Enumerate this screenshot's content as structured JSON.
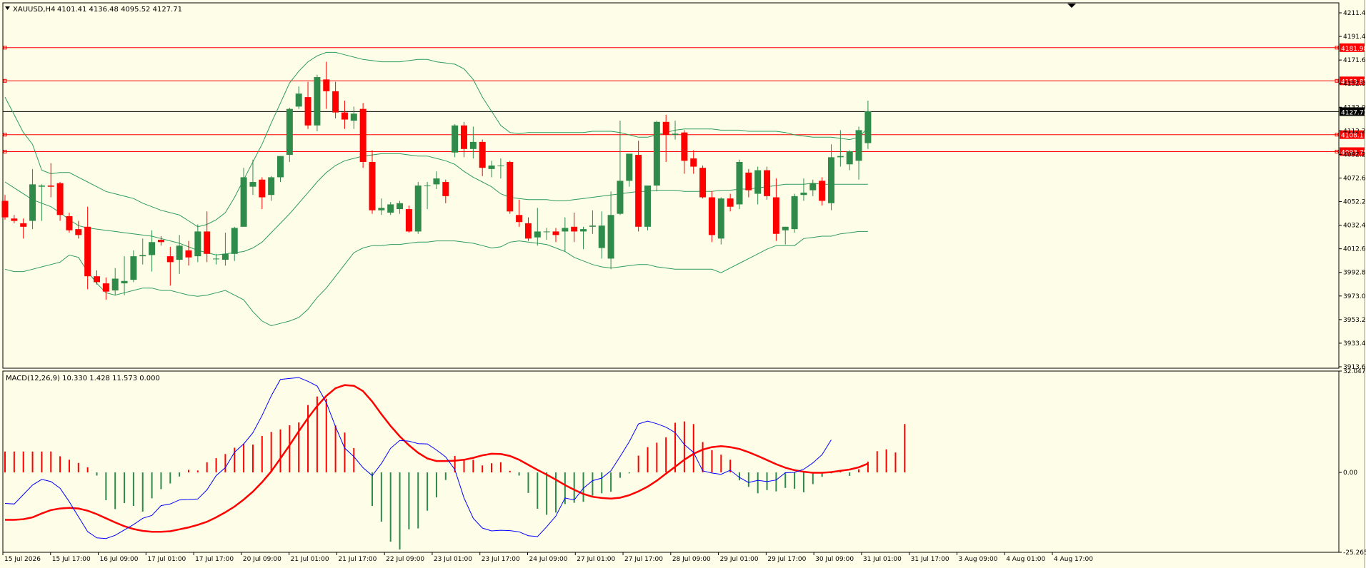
{
  "chart_data": {
    "type": "candlestick",
    "symbol": "XAUUSD,H4",
    "ohlc_label": "4101.41 4136.48 4095.52 4127.71",
    "colors": {
      "background": "#fefee8",
      "bull": "#2e8b4a",
      "bear": "#ff0000",
      "bands": "#2e9b5a",
      "macd": "#0000ff",
      "signal": "#ff0000",
      "level": "#ff0000",
      "price_line": "#000000"
    },
    "price_axis": {
      "range": [
        3910,
        4220
      ],
      "ticks": [
        "4211.40",
        "4191.40",
        "4171.60",
        "4152.00",
        "4132.00",
        "4112.20",
        "4092.20",
        "4072.60",
        "4052.25",
        "4032.45",
        "4012.65",
        "3992.85",
        "3973.05",
        "3953.25",
        "3933.45",
        "3913.65"
      ]
    },
    "levels": [
      {
        "value": 4181.98,
        "label": "4181.98"
      },
      {
        "value": 4153.82,
        "label": "4153.82"
      },
      {
        "value": 4108.17,
        "label": "4108.17"
      },
      {
        "value": 4093.78,
        "label": "4093.78"
      }
    ],
    "current_price": {
      "value": 4127.71,
      "label": "4127.71"
    },
    "time_axis": [
      "15 Jul 2026",
      "15 Jul 17:00",
      "16 Jul 09:00",
      "17 Jul 01:00",
      "17 Jul 17:00",
      "20 Jul 09:00",
      "21 Jul 01:00",
      "21 Jul 17:00",
      "22 Jul 09:00",
      "23 Jul 01:00",
      "23 Jul 17:00",
      "24 Jul 09:00",
      "27 Jul 01:00",
      "27 Jul 17:00",
      "28 Jul 09:00",
      "29 Jul 01:00",
      "29 Jul 17:00",
      "30 Jul 09:00",
      "31 Jul 01:00",
      "31 Jul 17:00",
      "3 Aug 09:00",
      "4 Aug 01:00",
      "4 Aug 17:00"
    ],
    "candles": [
      [
        4052,
        4057,
        4036,
        4038
      ],
      [
        4037,
        4040,
        4033,
        4035
      ],
      [
        4033,
        4037,
        4020,
        4030
      ],
      [
        4035,
        4079,
        4028,
        4066
      ],
      [
        4064,
        4066,
        4035,
        4065
      ],
      [
        4065,
        4084,
        4055,
        4064
      ],
      [
        4067,
        4068,
        4035,
        4040
      ],
      [
        4039,
        4042,
        4025,
        4027
      ],
      [
        4028,
        4035,
        4020,
        4023
      ],
      [
        4030,
        4047,
        3977,
        3988
      ],
      [
        3988,
        3993,
        3981,
        3983
      ],
      [
        3982,
        3987,
        3968,
        3975
      ],
      [
        3976,
        3995,
        3972,
        3986
      ],
      [
        3982,
        4005,
        3972,
        3984
      ],
      [
        3985,
        4010,
        3983,
        4005
      ],
      [
        4005,
        4020,
        3998,
        4006
      ],
      [
        4006,
        4027,
        3992,
        4017
      ],
      [
        4019,
        4022,
        4014,
        4017
      ],
      [
        4005,
        4013,
        3980,
        4000
      ],
      [
        4002,
        4023,
        3990,
        4014
      ],
      [
        4010,
        4018,
        3997,
        4004
      ],
      [
        4005,
        4032,
        4000,
        4026
      ],
      [
        4026,
        4043,
        4000,
        4007
      ],
      [
        4003,
        4007,
        3998,
        4003
      ],
      [
        4002,
        4025,
        3997,
        4007
      ],
      [
        4007,
        4030,
        4001,
        4029
      ],
      [
        4030,
        4080,
        4030,
        4072
      ],
      [
        4064,
        4087,
        4057,
        4068
      ],
      [
        4070,
        4072,
        4045,
        4055
      ],
      [
        4057,
        4073,
        4052,
        4072
      ],
      [
        4072,
        4090,
        4068,
        4090
      ],
      [
        4091,
        4131,
        4085,
        4130
      ],
      [
        4132,
        4149,
        4130,
        4143
      ],
      [
        4140,
        4153,
        4113,
        4116
      ],
      [
        4116,
        4159,
        4111,
        4157
      ],
      [
        4155,
        4170,
        4130,
        4145
      ],
      [
        4145,
        4153,
        4122,
        4127
      ],
      [
        4127,
        4137,
        4113,
        4121
      ],
      [
        4120,
        4132,
        4113,
        4126
      ],
      [
        4130,
        4135,
        4080,
        4085
      ],
      [
        4085,
        4095,
        4041,
        4044
      ],
      [
        4044,
        4054,
        4040,
        4046
      ],
      [
        4042,
        4051,
        4040,
        4049
      ],
      [
        4045,
        4052,
        4041,
        4050
      ],
      [
        4045,
        4048,
        4025,
        4026
      ],
      [
        4026,
        4068,
        4024,
        4065
      ],
      [
        4065,
        4068,
        4045,
        4065
      ],
      [
        4066,
        4077,
        4062,
        4071
      ],
      [
        4068,
        4070,
        4050,
        4056
      ],
      [
        4093,
        4117,
        4089,
        4116
      ],
      [
        4116,
        4119,
        4089,
        4096
      ],
      [
        4096,
        4115,
        4088,
        4102
      ],
      [
        4102,
        4104,
        4073,
        4080
      ],
      [
        4079,
        4086,
        4072,
        4082
      ],
      [
        4082,
        4088,
        4071,
        4082
      ],
      [
        4085,
        4086,
        4041,
        4043
      ],
      [
        4040,
        4053,
        4030,
        4034
      ],
      [
        4033,
        4038,
        4018,
        4020
      ],
      [
        4021,
        4046,
        4014,
        4026
      ],
      [
        4026,
        4029,
        4019,
        4026
      ],
      [
        4026,
        4029,
        4017,
        4023
      ],
      [
        4026,
        4038,
        4009,
        4029
      ],
      [
        4030,
        4042,
        4017,
        4026
      ],
      [
        4026,
        4030,
        4011,
        4028
      ],
      [
        4030,
        4044,
        4024,
        4031
      ],
      [
        4012,
        4043,
        4003,
        4031
      ],
      [
        4003,
        4060,
        3994,
        4040
      ],
      [
        4041,
        4120,
        4040,
        4069
      ],
      [
        4069,
        4091,
        4064,
        4092
      ],
      [
        4091,
        4103,
        4026,
        4030
      ],
      [
        4030,
        4064,
        4027,
        4065
      ],
      [
        4065,
        4120,
        4060,
        4119
      ],
      [
        4119,
        4125,
        4085,
        4108
      ],
      [
        4108,
        4120,
        4104,
        4109
      ],
      [
        4110,
        4112,
        4075,
        4086
      ],
      [
        4088,
        4095,
        4075,
        4081
      ],
      [
        4080,
        4082,
        4054,
        4055
      ],
      [
        4055,
        4060,
        4017,
        4023
      ],
      [
        4020,
        4055,
        4015,
        4054
      ],
      [
        4054,
        4058,
        4043,
        4047
      ],
      [
        4049,
        4087,
        4045,
        4085
      ],
      [
        4076,
        4079,
        4055,
        4061
      ],
      [
        4058,
        4081,
        4049,
        4078
      ],
      [
        4078,
        4081,
        4053,
        4056
      ],
      [
        4055,
        4071,
        4018,
        4024
      ],
      [
        4027,
        4030,
        4015,
        4030
      ],
      [
        4028,
        4058,
        4025,
        4056
      ],
      [
        4057,
        4071,
        4052,
        4059
      ],
      [
        4061,
        4070,
        4056,
        4067
      ],
      [
        4069,
        4072,
        4048,
        4052
      ],
      [
        4050,
        4100,
        4044,
        4089
      ],
      [
        4089,
        4112,
        4081,
        4090
      ],
      [
        4083,
        4095,
        4078,
        4094
      ],
      [
        4086,
        4115,
        4070,
        4112
      ],
      [
        4101,
        4137,
        4096,
        4128
      ]
    ],
    "bands": {
      "upper": [
        4140,
        4125,
        4110,
        4100,
        4078,
        4075,
        4076,
        4076,
        4072,
        4068,
        4064,
        4060,
        4058,
        4056,
        4054,
        4050,
        4047,
        4044,
        4042,
        4040,
        4035,
        4030,
        4032,
        4036,
        4042,
        4055,
        4070,
        4085,
        4100,
        4118,
        4135,
        4152,
        4162,
        4170,
        4175,
        4178,
        4178,
        4176,
        4174,
        4172,
        4171,
        4170,
        4170,
        4170,
        4171,
        4172,
        4172,
        4170,
        4169,
        4168,
        4164,
        4155,
        4140,
        4128,
        4116,
        4110,
        4109,
        4110,
        4110,
        4110,
        4110,
        4110,
        4110,
        4110,
        4111,
        4111,
        4111,
        4110,
        4108,
        4106,
        4106,
        4108,
        4110,
        4112,
        4113,
        4113,
        4113,
        4113,
        4112,
        4112,
        4112,
        4111,
        4111,
        4111,
        4111,
        4110,
        4108,
        4107,
        4106,
        4106,
        4106,
        4105,
        4104,
        4106,
        4114
      ],
      "middle": [
        4068,
        4063,
        4058,
        4053,
        4050,
        4047,
        4042,
        4036,
        4031,
        4029,
        4028,
        4027,
        4026,
        4025,
        4024,
        4023,
        4022,
        4020,
        4018,
        4016,
        4013,
        4010,
        4008,
        4006,
        4007,
        4008,
        4009,
        4012,
        4017,
        4025,
        4033,
        4041,
        4050,
        4059,
        4068,
        4076,
        4082,
        4086,
        4088,
        4090,
        4091,
        4092,
        4092,
        4092,
        4091,
        4090,
        4090,
        4088,
        4086,
        4083,
        4077,
        4072,
        4068,
        4064,
        4058,
        4055,
        4054,
        4053,
        4053,
        4053,
        4052,
        4052,
        4053,
        4054,
        4055,
        4056,
        4057,
        4058,
        4059,
        4060,
        4060,
        4061,
        4061,
        4061,
        4060,
        4060,
        4060,
        4060,
        4061,
        4061,
        4062,
        4062,
        4063,
        4064,
        4065,
        4066,
        4066,
        4066,
        4067,
        4066,
        4066,
        4066,
        4066,
        4066,
        4066
      ],
      "lower": [
        3994,
        3992,
        3992,
        3994,
        3996,
        3998,
        4000,
        4006,
        4004,
        3992,
        3982,
        3974,
        3972,
        3974,
        3976,
        3978,
        3978,
        3976,
        3976,
        3974,
        3972,
        3971,
        3972,
        3974,
        3976,
        3972,
        3968,
        3958,
        3950,
        3946,
        3948,
        3950,
        3953,
        3960,
        3970,
        3978,
        3988,
        3998,
        4008,
        4012,
        4014,
        4014,
        4015,
        4015,
        4016,
        4017,
        4017,
        4018,
        4018,
        4018,
        4017,
        4016,
        4014,
        4012,
        4013,
        4017,
        4018,
        4017,
        4016,
        4015,
        4012,
        4009,
        4004,
        4001,
        3998,
        3996,
        3995,
        3996,
        3997,
        3998,
        3998,
        3996,
        3995,
        3994,
        3994,
        3994,
        3994,
        3994,
        3991,
        3995,
        3999,
        4003,
        4007,
        4011,
        4014,
        4014,
        4014,
        4020,
        4021,
        4022,
        4022,
        4024,
        4025,
        4026,
        4026
      ]
    },
    "macd": {
      "label": "MACD(12,26,9) 10.330 1.428 11.573 0.000",
      "range": [
        -25.265,
        32.047
      ],
      "ticks": [
        "32.047",
        "0.00",
        "-25.265"
      ],
      "histogram": [
        6.6,
        6.6,
        6.6,
        6.6,
        6.6,
        6.6,
        5.1,
        4.0,
        3.0,
        1.6,
        -1.0,
        -8.8,
        -11.6,
        -9.7,
        -10.6,
        -12.4,
        -8.2,
        -5.3,
        -3.5,
        -1.3,
        0.8,
        0.6,
        3.2,
        4.5,
        5.8,
        7.8,
        9.1,
        8.8,
        11.5,
        12.8,
        13.6,
        14.9,
        15.8,
        21.3,
        24.0,
        23.3,
        14.8,
        12.6,
        7.7,
        0.0,
        -10.6,
        -15.6,
        -21.9,
        -24.4,
        -18.0,
        -17.7,
        -12.1,
        -7.9,
        -2.4,
        5.2,
        4.1,
        4.0,
        2.2,
        2.9,
        3.2,
        0.5,
        -1.0,
        -6.5,
        -11.5,
        -13.4,
        -12.7,
        -10.0,
        -9.6,
        -9.3,
        -7.4,
        -6.6,
        -6.1,
        -1.7,
        -0.3,
        5.3,
        8.0,
        9.4,
        11.1,
        15.7,
        16.1,
        15.3,
        9.6,
        7.0,
        5.6,
        4.0,
        -2.5,
        -4.6,
        -6.6,
        -5.6,
        -6.0,
        -4.9,
        -5.2,
        -6.3,
        -3.7,
        -1.4,
        -0.3,
        0.3,
        -1.1,
        1.0,
        3.4,
        6.7,
        7.3,
        6.3,
        15.3
      ],
      "signal": [
        -15.0,
        -15.0,
        -14.8,
        -14.2,
        -13.0,
        -11.9,
        -11.4,
        -11.2,
        -11.4,
        -12.1,
        -13.2,
        -14.5,
        -15.8,
        -17.0,
        -17.9,
        -18.5,
        -18.8,
        -18.8,
        -18.6,
        -18.0,
        -17.4,
        -16.6,
        -15.6,
        -14.2,
        -12.6,
        -10.8,
        -8.6,
        -6.1,
        -3.1,
        0.3,
        4.4,
        8.6,
        13.0,
        17.2,
        21.0,
        24.2,
        26.6,
        27.6,
        27.4,
        25.7,
        22.4,
        18.4,
        14.7,
        11.4,
        8.6,
        6.2,
        4.4,
        3.6,
        3.6,
        3.7,
        4.0,
        4.6,
        5.4,
        5.9,
        5.8,
        5.2,
        4.0,
        2.4,
        0.8,
        -0.7,
        -2.3,
        -4.0,
        -5.5,
        -6.8,
        -7.7,
        -8.1,
        -8.3,
        -8.0,
        -7.2,
        -6.0,
        -4.5,
        -2.6,
        -0.4,
        1.8,
        4.0,
        5.9,
        7.2,
        8.0,
        8.3,
        8.0,
        7.4,
        6.4,
        5.2,
        3.9,
        2.6,
        1.5,
        0.7,
        0.2,
        -0.1,
        -0.1,
        0.1,
        0.5,
        0.9,
        1.6,
        2.8
      ],
      "macd_line": [
        -9.8,
        -10.0,
        -7.0,
        -4.0,
        -2.2,
        -2.9,
        -5.0,
        -9.3,
        -14.0,
        -18.7,
        -20.7,
        -20.9,
        -19.9,
        -18.2,
        -16.5,
        -14.5,
        -13.6,
        -10.5,
        -10.0,
        -8.7,
        -8.6,
        -8.4,
        -5.5,
        -1.0,
        1.5,
        6.4,
        9.0,
        12.5,
        18.0,
        24.2,
        29.4,
        29.7,
        30.0,
        28.8,
        27.3,
        22.0,
        14.5,
        7.7,
        5.0,
        1.5,
        -1.0,
        2.8,
        7.6,
        10.1,
        9.9,
        9.1,
        9.0,
        7.1,
        4.9,
        0.9,
        -8.1,
        -14.5,
        -17.6,
        -18.5,
        -18.3,
        -18.4,
        -18.8,
        -20.0,
        -20.3,
        -17.2,
        -13.8,
        -8.1,
        -8.7,
        -5.0,
        -2.6,
        -1.8,
        0.5,
        5.0,
        9.7,
        15.3,
        16.2,
        15.4,
        14.3,
        12.6,
        8.8,
        6.3,
        0.5,
        -0.2,
        -0.6,
        0.7,
        -1.6,
        -3.2,
        -2.5,
        -2.9,
        -2.4,
        -0.1,
        0.0,
        1.0,
        3.0,
        5.6,
        10.3
      ]
    }
  }
}
